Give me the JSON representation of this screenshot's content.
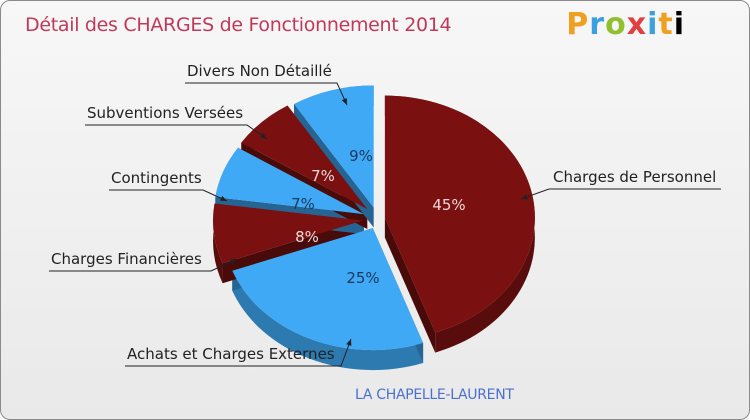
{
  "header": {
    "title": "Détail des CHARGES de Fonctionnement 2014"
  },
  "brand": {
    "logo_text": "Proxiti",
    "logo_letters": [
      "P",
      "r",
      "o",
      "x",
      "i",
      "t",
      "i"
    ]
  },
  "footer": {
    "city": "LA CHAPELLE-LAURENT"
  },
  "colors": {
    "dark_red": "#7a1010",
    "blue": "#3fa9f5",
    "title": "#c0395a",
    "city": "#4a70d0"
  },
  "chart_data": {
    "type": "pie",
    "title": "Détail des CHARGES de Fonctionnement 2014",
    "slices": [
      {
        "label": "Charges de Personnel",
        "value": 45,
        "display": "45%",
        "color": "#7a1010"
      },
      {
        "label": "Achats et Charges Externes",
        "value": 25,
        "display": "25%",
        "color": "#3fa9f5"
      },
      {
        "label": "Charges Financières",
        "value": 8,
        "display": "8%",
        "color": "#7a1010"
      },
      {
        "label": "Contingents",
        "value": 7,
        "display": "7%",
        "color": "#3fa9f5"
      },
      {
        "label": "Subventions Versées",
        "value": 7,
        "display": "7%",
        "color": "#7a1010"
      },
      {
        "label": "Divers Non Détaillé",
        "value": 9,
        "display": "9%",
        "color": "#3fa9f5"
      }
    ],
    "legend": "none"
  }
}
